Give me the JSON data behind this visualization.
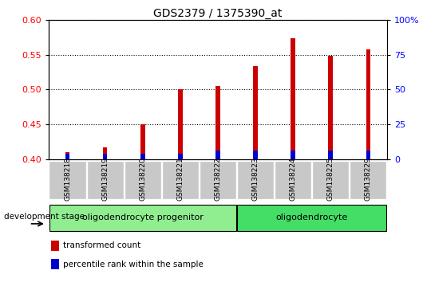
{
  "title": "GDS2379 / 1375390_at",
  "samples": [
    "GSM138218",
    "GSM138219",
    "GSM138220",
    "GSM138221",
    "GSM138222",
    "GSM138223",
    "GSM138224",
    "GSM138225",
    "GSM138229"
  ],
  "red_values": [
    0.41,
    0.417,
    0.45,
    0.5,
    0.505,
    0.534,
    0.574,
    0.548,
    0.557
  ],
  "blue_values": [
    0.408,
    0.408,
    0.408,
    0.408,
    0.413,
    0.413,
    0.413,
    0.413,
    0.413
  ],
  "bar_base": 0.4,
  "ylim_left": [
    0.4,
    0.6
  ],
  "ylim_right": [
    0,
    100
  ],
  "yticks_left": [
    0.4,
    0.45,
    0.5,
    0.55,
    0.6
  ],
  "yticks_right": [
    0,
    25,
    50,
    75,
    100
  ],
  "ytick_labels_right": [
    "0",
    "25",
    "50",
    "75",
    "100%"
  ],
  "red_color": "#CC0000",
  "blue_color": "#0000CC",
  "bar_width": 0.12,
  "groups": [
    {
      "label": "oligodendrocyte progenitor",
      "start": 0,
      "end": 5,
      "color": "#90EE90"
    },
    {
      "label": "oligodendrocyte",
      "start": 5,
      "end": 9,
      "color": "#44DD66"
    }
  ],
  "legend_items": [
    {
      "label": "transformed count",
      "color": "#CC0000"
    },
    {
      "label": "percentile rank within the sample",
      "color": "#0000CC"
    }
  ],
  "tick_bg_color": "#C8C8C8",
  "plot_bg_color": "#FFFFFF",
  "dotted_grid_color": "#000000",
  "fig_width": 5.3,
  "fig_height": 3.54,
  "dpi": 100
}
